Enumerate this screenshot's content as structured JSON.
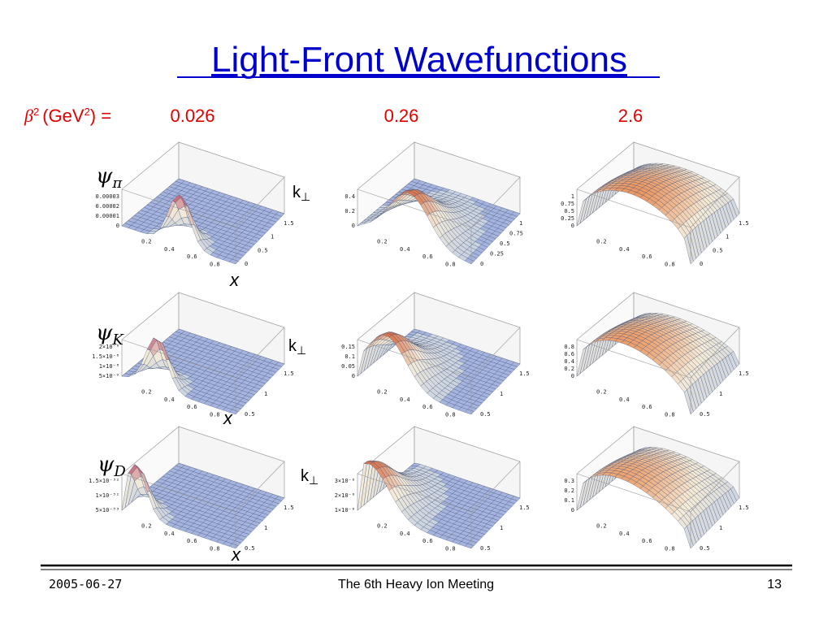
{
  "title": "Light-Front Wavefunctions",
  "beta_label": {
    "symbol": "β",
    "exp": "2",
    "unit": "(GeV",
    "unit_exp": "2",
    "end": ") ="
  },
  "beta_values": [
    0.026,
    0.26,
    2.6
  ],
  "rows": [
    {
      "label": "ψ",
      "sub": "π"
    },
    {
      "label": "ψ",
      "sub": "K"
    },
    {
      "label": "ψ",
      "sub": "D"
    }
  ],
  "k_label": {
    "text": "k",
    "sub": "⊥"
  },
  "x_label": "x",
  "plots": [
    {
      "z_ticks": [
        "0.00003",
        "0.00002",
        "0.00001",
        "0"
      ],
      "x_ticks": [
        "0.2",
        "0.4",
        "0.6",
        "0.8"
      ],
      "k_ticks": [
        "1.5",
        "1",
        "0.5",
        "0"
      ]
    },
    {
      "z_ticks": [
        "0.4",
        "0.2",
        "0"
      ],
      "x_ticks": [
        "0.2",
        "0.4",
        "0.6",
        "0.8"
      ],
      "k_ticks": [
        "1",
        "0.75",
        "0.5",
        "0.25",
        "0"
      ]
    },
    {
      "z_ticks": [
        "1",
        "0.75",
        "0.5",
        "0.25",
        "0"
      ],
      "x_ticks": [
        "0.2",
        "0.4",
        "0.6",
        "0.8"
      ],
      "k_ticks": [
        "1.5",
        "1",
        "0.5",
        "0"
      ]
    },
    {
      "z_ticks": [
        "2×10⁻⁸",
        "1.5×10⁻⁸",
        "1×10⁻⁸",
        "5×10⁻⁹"
      ],
      "x_ticks": [
        "0.2",
        "0.4",
        "0.6",
        "0.8"
      ],
      "k_ticks": [
        "1.5",
        "1",
        "0.5"
      ]
    },
    {
      "z_ticks": [
        "0.15",
        "0.1",
        "0.05",
        "0"
      ],
      "x_ticks": [
        "0.2",
        "0.4",
        "0.6",
        "0.8"
      ],
      "k_ticks": [
        "1.5",
        "1",
        "0.5"
      ]
    },
    {
      "z_ticks": [
        "0.8",
        "0.6",
        "0.4",
        "0.2",
        "0"
      ],
      "x_ticks": [
        "0.2",
        "0.4",
        "0.6",
        "0.8"
      ],
      "k_ticks": [
        "1.5",
        "1",
        "0.5"
      ]
    },
    {
      "z_ticks": [
        "1.5×10⁻³²",
        "1×10⁻³²",
        "5×10⁻³³"
      ],
      "x_ticks": [
        "0.2",
        "0.4",
        "0.6",
        "0.8"
      ],
      "k_ticks": [
        "1.5",
        "1",
        "0.5"
      ]
    },
    {
      "z_ticks": [
        "3×10⁻⁶",
        "2×10⁻⁶",
        "1×10⁻⁶"
      ],
      "x_ticks": [
        "0.2",
        "0.4",
        "0.6",
        "0.8"
      ],
      "k_ticks": [
        "1.5",
        "1",
        "0.5"
      ]
    },
    {
      "z_ticks": [
        "0.3",
        "0.2",
        "0.1",
        "0"
      ],
      "x_ticks": [
        "0.2",
        "0.4",
        "0.6",
        "0.8"
      ],
      "k_ticks": [
        "1.5",
        "1",
        "0.5"
      ]
    }
  ],
  "footer": {
    "date": "2005-06-27",
    "event": "The 6th Heavy Ion Meeting",
    "page": "13"
  }
}
